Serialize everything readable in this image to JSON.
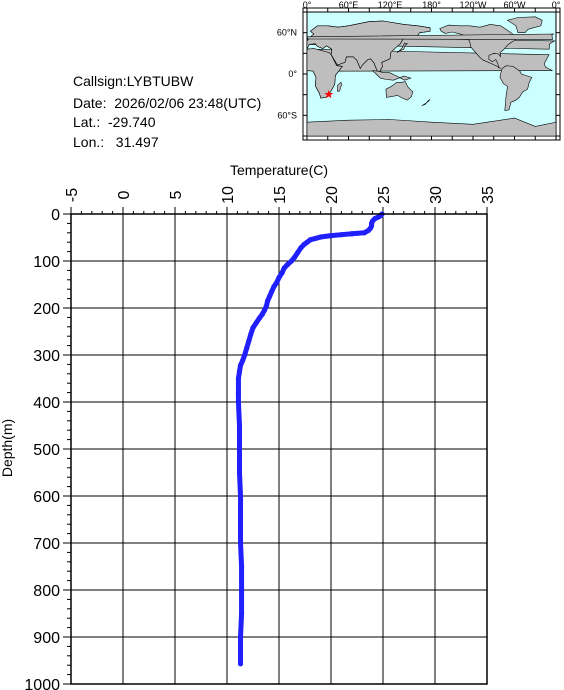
{
  "info": {
    "callsign": "Callsign:LYBTUBW",
    "date": "Date:  2026/02/06 23:48(UTC)",
    "lat": "Lat.:  -29.740",
    "lon": "Lon.:   31.497"
  },
  "map": {
    "top_labels": [
      "0°",
      "60°E",
      "120°E",
      "180°",
      "120°W",
      "60°W",
      "0°"
    ],
    "side_labels": [
      "60°N",
      "0°",
      "60°S"
    ],
    "marker": {
      "lat": -29.74,
      "lon": 31.497,
      "color": "#ff0000"
    },
    "ocean_color": "#ccffff",
    "land_color": "#bebebe"
  },
  "chart_data": {
    "type": "line",
    "xlabel": "Temperature(C)",
    "ylabel": "Depth(m)",
    "xlim": [
      -5,
      35
    ],
    "ylim": [
      1000,
      0
    ],
    "x_ticks": [
      "-5",
      "0",
      "5",
      "10",
      "15",
      "20",
      "25",
      "30",
      "35"
    ],
    "y_ticks": [
      "0",
      "100",
      "200",
      "300",
      "400",
      "500",
      "600",
      "700",
      "800",
      "900",
      "1000"
    ],
    "grid": true,
    "series_color": "#2020ff",
    "series": [
      {
        "points": [
          [
            24.9,
            0
          ],
          [
            24.8,
            3
          ],
          [
            24.6,
            6
          ],
          [
            24.2,
            10
          ],
          [
            24.0,
            15
          ],
          [
            23.9,
            20
          ],
          [
            23.9,
            25
          ],
          [
            23.8,
            30
          ],
          [
            23.6,
            35
          ],
          [
            23.2,
            40
          ],
          [
            22.0,
            42
          ],
          [
            21.0,
            44
          ],
          [
            20.0,
            46
          ],
          [
            19.0,
            49
          ],
          [
            18.5,
            52
          ],
          [
            18.0,
            55
          ],
          [
            17.7,
            60
          ],
          [
            17.4,
            65
          ],
          [
            17.1,
            72
          ],
          [
            16.8,
            82
          ],
          [
            16.5,
            92
          ],
          [
            16.2,
            100
          ],
          [
            15.8,
            108
          ],
          [
            15.5,
            115
          ],
          [
            15.3,
            125
          ],
          [
            15.0,
            135
          ],
          [
            14.8,
            145
          ],
          [
            14.5,
            155
          ],
          [
            14.3,
            165
          ],
          [
            14.1,
            175
          ],
          [
            13.9,
            185
          ],
          [
            13.8,
            195
          ],
          [
            13.6,
            205
          ],
          [
            13.4,
            213
          ],
          [
            13.1,
            222
          ],
          [
            12.8,
            232
          ],
          [
            12.5,
            242
          ],
          [
            12.3,
            255
          ],
          [
            12.1,
            270
          ],
          [
            11.9,
            285
          ],
          [
            11.7,
            300
          ],
          [
            11.5,
            312
          ],
          [
            11.3,
            322
          ],
          [
            11.2,
            335
          ],
          [
            11.1,
            350
          ],
          [
            11.1,
            380
          ],
          [
            11.1,
            400
          ],
          [
            11.2,
            450
          ],
          [
            11.2,
            480
          ],
          [
            11.2,
            550
          ],
          [
            11.3,
            600
          ],
          [
            11.3,
            650
          ],
          [
            11.3,
            700
          ],
          [
            11.4,
            750
          ],
          [
            11.4,
            800
          ],
          [
            11.4,
            850
          ],
          [
            11.3,
            900
          ],
          [
            11.3,
            957
          ]
        ]
      }
    ]
  }
}
